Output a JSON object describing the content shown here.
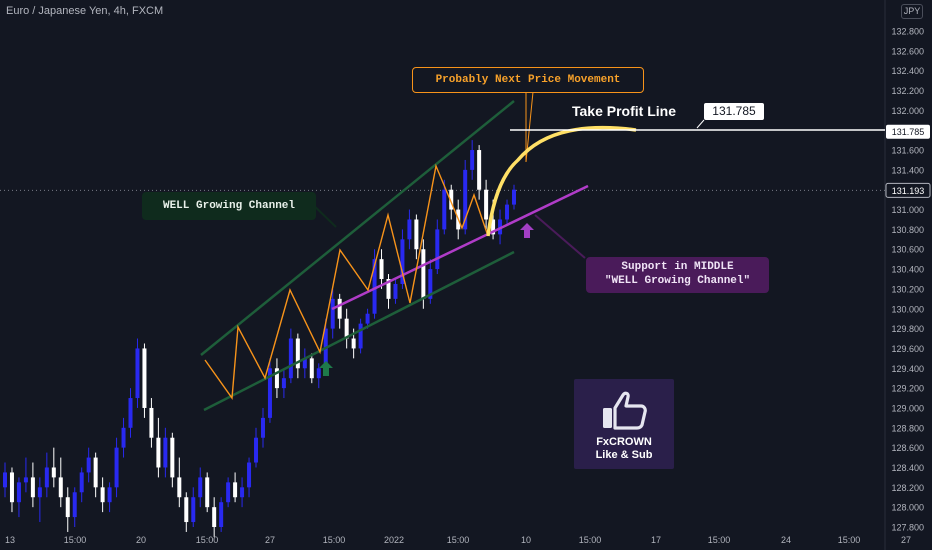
{
  "header": {
    "symbol_title": "Euro / Japanese Yen, 4h, FXCM",
    "currency_badge": "JPY"
  },
  "annotations": {
    "next_move": "Probably Next Price Movement",
    "channel": "WELL Growing Channel",
    "support_line1": "Support in MIDDLE",
    "support_line2": "\"WELL Growing Channel\"",
    "tp_label": "Take Profit Line",
    "tp_value": "131.785"
  },
  "badge": {
    "line1": "FxCROWN",
    "line2": "Like & Sub"
  },
  "colors": {
    "background": "#131722",
    "bull_candle": "#2929f0",
    "bear_candle": "#ffffff",
    "channel": "#1e5e3a",
    "zigzag": "#f7931a",
    "support": "#b03cc8",
    "projection": "#ffe066"
  },
  "chart_data": {
    "type": "candlestick",
    "y_axis": {
      "ylim": [
        127.75,
        133.0
      ],
      "tick_labels": [
        "132.800",
        "132.600",
        "132.400",
        "132.200",
        "132.000",
        "131.800",
        "131.600",
        "131.400",
        "131.200",
        "131.000",
        "130.800",
        "130.600",
        "130.400",
        "130.200",
        "130.000",
        "129.800",
        "129.600",
        "129.400",
        "129.200",
        "129.000",
        "128.800",
        "128.600",
        "128.400",
        "128.200",
        "128.000",
        "127.800"
      ],
      "tick_values": [
        132.8,
        132.6,
        132.4,
        132.2,
        132.0,
        131.8,
        131.6,
        131.4,
        131.2,
        131.0,
        130.8,
        130.6,
        130.4,
        130.2,
        130.0,
        129.8,
        129.6,
        129.4,
        129.2,
        129.0,
        128.8,
        128.6,
        128.4,
        128.2,
        128.0,
        127.8
      ]
    },
    "x_axis": {
      "tick_labels": [
        "13",
        "15:00",
        "20",
        "15:00",
        "27",
        "15:00",
        "2022",
        "15:00",
        "10",
        "15:00",
        "17",
        "15:00",
        "24",
        "15:00",
        "27"
      ]
    },
    "price_markers": [
      {
        "label": "131.785",
        "value": 131.785,
        "style": "take-profit"
      },
      {
        "label": "131.193",
        "value": 131.193,
        "style": "last-price"
      }
    ],
    "candles": [
      [
        128.2,
        128.45,
        128.1,
        128.35
      ],
      [
        128.35,
        128.4,
        127.95,
        128.05
      ],
      [
        128.05,
        128.3,
        127.9,
        128.25
      ],
      [
        128.25,
        128.5,
        128.15,
        128.3
      ],
      [
        128.3,
        128.45,
        128.0,
        128.1
      ],
      [
        128.1,
        128.3,
        127.85,
        128.2
      ],
      [
        128.2,
        128.55,
        128.1,
        128.4
      ],
      [
        128.4,
        128.6,
        128.2,
        128.3
      ],
      [
        128.3,
        128.5,
        128.0,
        128.1
      ],
      [
        128.1,
        128.2,
        127.75,
        127.9
      ],
      [
        127.9,
        128.2,
        127.8,
        128.15
      ],
      [
        128.15,
        128.4,
        128.05,
        128.35
      ],
      [
        128.35,
        128.6,
        128.25,
        128.5
      ],
      [
        128.5,
        128.55,
        128.1,
        128.2
      ],
      [
        128.2,
        128.3,
        127.95,
        128.05
      ],
      [
        128.05,
        128.25,
        127.95,
        128.2
      ],
      [
        128.2,
        128.7,
        128.1,
        128.6
      ],
      [
        128.6,
        128.9,
        128.5,
        128.8
      ],
      [
        128.8,
        129.2,
        128.7,
        129.1
      ],
      [
        129.1,
        129.7,
        129.0,
        129.6
      ],
      [
        129.6,
        129.65,
        128.9,
        129.0
      ],
      [
        129.0,
        129.1,
        128.6,
        128.7
      ],
      [
        128.7,
        128.9,
        128.3,
        128.4
      ],
      [
        128.4,
        128.8,
        128.3,
        128.7
      ],
      [
        128.7,
        128.75,
        128.2,
        128.3
      ],
      [
        128.3,
        128.5,
        128.0,
        128.1
      ],
      [
        128.1,
        128.15,
        127.75,
        127.85
      ],
      [
        127.85,
        128.2,
        127.8,
        128.1
      ],
      [
        128.1,
        128.4,
        128.0,
        128.3
      ],
      [
        128.3,
        128.35,
        127.95,
        128.0
      ],
      [
        128.0,
        128.1,
        127.7,
        127.8
      ],
      [
        127.8,
        128.1,
        127.75,
        128.05
      ],
      [
        128.05,
        128.3,
        128.0,
        128.25
      ],
      [
        128.25,
        128.35,
        128.05,
        128.1
      ],
      [
        128.1,
        128.3,
        128.0,
        128.2
      ],
      [
        128.2,
        128.5,
        128.1,
        128.45
      ],
      [
        128.45,
        128.8,
        128.4,
        128.7
      ],
      [
        128.7,
        129.0,
        128.6,
        128.9
      ],
      [
        128.9,
        129.5,
        128.85,
        129.4
      ],
      [
        129.4,
        129.5,
        129.1,
        129.2
      ],
      [
        129.2,
        129.4,
        129.1,
        129.3
      ],
      [
        129.3,
        129.8,
        129.25,
        129.7
      ],
      [
        129.7,
        129.75,
        129.3,
        129.4
      ],
      [
        129.4,
        129.6,
        129.3,
        129.5
      ],
      [
        129.5,
        129.55,
        129.25,
        129.3
      ],
      [
        129.3,
        129.45,
        129.2,
        129.4
      ],
      [
        129.4,
        129.9,
        129.35,
        129.8
      ],
      [
        129.8,
        130.2,
        129.7,
        130.1
      ],
      [
        130.1,
        130.15,
        129.8,
        129.9
      ],
      [
        129.9,
        130.0,
        129.6,
        129.7
      ],
      [
        129.7,
        129.8,
        129.5,
        129.6
      ],
      [
        129.6,
        129.9,
        129.55,
        129.85
      ],
      [
        129.85,
        130.0,
        129.8,
        129.95
      ],
      [
        129.95,
        130.6,
        129.9,
        130.5
      ],
      [
        130.5,
        130.6,
        130.2,
        130.3
      ],
      [
        130.3,
        130.35,
        130.0,
        130.1
      ],
      [
        130.1,
        130.3,
        130.05,
        130.25
      ],
      [
        130.25,
        130.8,
        130.2,
        130.7
      ],
      [
        130.7,
        131.0,
        130.6,
        130.9
      ],
      [
        130.9,
        130.95,
        130.5,
        130.6
      ],
      [
        130.6,
        130.7,
        130.0,
        130.1
      ],
      [
        130.1,
        130.5,
        130.05,
        130.4
      ],
      [
        130.4,
        130.9,
        130.35,
        130.8
      ],
      [
        130.8,
        131.3,
        130.75,
        131.2
      ],
      [
        131.2,
        131.25,
        130.9,
        131.0
      ],
      [
        131.0,
        131.1,
        130.7,
        130.8
      ],
      [
        130.8,
        131.5,
        130.75,
        131.4
      ],
      [
        131.4,
        131.7,
        131.3,
        131.6
      ],
      [
        131.6,
        131.65,
        131.1,
        131.2
      ],
      [
        131.2,
        131.3,
        130.8,
        130.9
      ],
      [
        130.9,
        131.1,
        130.7,
        130.75
      ],
      [
        130.75,
        131.0,
        130.65,
        130.9
      ],
      [
        130.9,
        131.1,
        130.85,
        131.05
      ],
      [
        131.05,
        131.25,
        131.0,
        131.2
      ]
    ]
  }
}
